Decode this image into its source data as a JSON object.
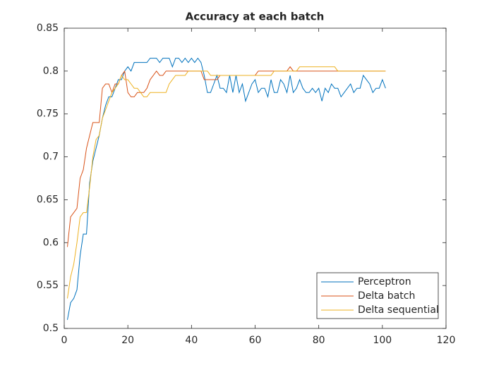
{
  "chart_data": {
    "type": "line",
    "title": "Accuracy at each batch",
    "x": [
      1,
      2,
      3,
      4,
      5,
      6,
      7,
      8,
      9,
      10,
      11,
      12,
      13,
      14,
      15,
      16,
      17,
      18,
      19,
      20,
      21,
      22,
      23,
      24,
      25,
      26,
      27,
      28,
      29,
      30,
      31,
      32,
      33,
      34,
      35,
      36,
      37,
      38,
      39,
      40,
      41,
      42,
      43,
      44,
      45,
      46,
      47,
      48,
      49,
      50,
      51,
      52,
      53,
      54,
      55,
      56,
      57,
      58,
      59,
      60,
      61,
      62,
      63,
      64,
      65,
      66,
      67,
      68,
      69,
      70,
      71,
      72,
      73,
      74,
      75,
      76,
      77,
      78,
      79,
      80,
      81,
      82,
      83,
      84,
      85,
      86,
      87,
      88,
      89,
      90,
      91,
      92,
      93,
      94,
      95,
      96,
      97,
      98,
      99,
      100,
      101
    ],
    "series": [
      {
        "name": "Perceptron",
        "color": "#0072bd",
        "values": [
          0.51,
          0.53,
          0.535,
          0.545,
          0.585,
          0.61,
          0.61,
          0.67,
          0.695,
          0.71,
          0.725,
          0.745,
          0.76,
          0.77,
          0.77,
          0.78,
          0.79,
          0.79,
          0.8,
          0.805,
          0.8,
          0.81,
          0.81,
          0.81,
          0.81,
          0.81,
          0.815,
          0.815,
          0.815,
          0.81,
          0.815,
          0.815,
          0.815,
          0.805,
          0.815,
          0.815,
          0.81,
          0.815,
          0.81,
          0.815,
          0.81,
          0.815,
          0.81,
          0.795,
          0.775,
          0.775,
          0.785,
          0.795,
          0.78,
          0.78,
          0.775,
          0.795,
          0.775,
          0.795,
          0.775,
          0.785,
          0.765,
          0.775,
          0.785,
          0.79,
          0.775,
          0.78,
          0.78,
          0.77,
          0.79,
          0.775,
          0.775,
          0.79,
          0.785,
          0.775,
          0.795,
          0.775,
          0.78,
          0.79,
          0.78,
          0.775,
          0.775,
          0.78,
          0.775,
          0.78,
          0.765,
          0.78,
          0.775,
          0.785,
          0.78,
          0.78,
          0.77,
          0.775,
          0.78,
          0.785,
          0.775,
          0.78,
          0.78,
          0.795,
          0.79,
          0.785,
          0.775,
          0.78,
          0.78,
          0.79,
          0.78
        ]
      },
      {
        "name": "Delta batch",
        "color": "#d95319",
        "values": [
          0.595,
          0.63,
          0.635,
          0.64,
          0.675,
          0.685,
          0.71,
          0.725,
          0.74,
          0.74,
          0.74,
          0.78,
          0.785,
          0.785,
          0.775,
          0.785,
          0.785,
          0.795,
          0.8,
          0.775,
          0.77,
          0.77,
          0.775,
          0.775,
          0.775,
          0.78,
          0.79,
          0.795,
          0.8,
          0.795,
          0.795,
          0.8,
          0.8,
          0.8,
          0.8,
          0.8,
          0.8,
          0.8,
          0.8,
          0.8,
          0.8,
          0.8,
          0.8,
          0.79,
          0.79,
          0.79,
          0.79,
          0.79,
          0.795,
          0.795,
          0.795,
          0.795,
          0.795,
          0.795,
          0.795,
          0.795,
          0.795,
          0.795,
          0.795,
          0.795,
          0.8,
          0.8,
          0.8,
          0.8,
          0.8,
          0.8,
          0.8,
          0.8,
          0.8,
          0.8,
          0.805,
          0.8,
          0.8,
          0.8,
          0.8,
          0.8,
          0.8,
          0.8,
          0.8,
          0.8,
          0.8,
          0.8,
          0.8,
          0.8,
          0.8,
          0.8,
          0.8,
          0.8,
          0.8,
          0.8,
          0.8,
          0.8,
          0.8,
          0.8,
          0.8,
          0.8,
          0.8,
          0.8,
          0.8,
          0.8,
          0.8
        ]
      },
      {
        "name": "Delta sequential",
        "color": "#edb120",
        "values": [
          0.535,
          0.56,
          0.575,
          0.6,
          0.63,
          0.635,
          0.635,
          0.665,
          0.7,
          0.72,
          0.725,
          0.745,
          0.755,
          0.765,
          0.775,
          0.78,
          0.785,
          0.795,
          0.79,
          0.79,
          0.785,
          0.78,
          0.78,
          0.775,
          0.77,
          0.77,
          0.775,
          0.775,
          0.775,
          0.775,
          0.775,
          0.775,
          0.785,
          0.79,
          0.795,
          0.795,
          0.795,
          0.795,
          0.8,
          0.8,
          0.8,
          0.8,
          0.8,
          0.8,
          0.8,
          0.795,
          0.795,
          0.795,
          0.795,
          0.795,
          0.795,
          0.795,
          0.795,
          0.795,
          0.795,
          0.795,
          0.795,
          0.795,
          0.795,
          0.795,
          0.795,
          0.795,
          0.795,
          0.795,
          0.795,
          0.8,
          0.8,
          0.8,
          0.8,
          0.8,
          0.8,
          0.8,
          0.8,
          0.805,
          0.805,
          0.805,
          0.805,
          0.805,
          0.805,
          0.805,
          0.805,
          0.805,
          0.805,
          0.805,
          0.805,
          0.8,
          0.8,
          0.8,
          0.8,
          0.8,
          0.8,
          0.8,
          0.8,
          0.8,
          0.8,
          0.8,
          0.8,
          0.8,
          0.8,
          0.8,
          0.8
        ]
      }
    ],
    "xlim": [
      0,
      120
    ],
    "xticks": [
      0,
      20,
      40,
      60,
      80,
      100,
      120
    ],
    "ylim": [
      0.5,
      0.85
    ],
    "yticks": [
      0.5,
      0.55,
      0.6,
      0.65,
      0.7,
      0.75,
      0.8,
      0.85
    ],
    "grid": false,
    "legend": "southeast"
  }
}
